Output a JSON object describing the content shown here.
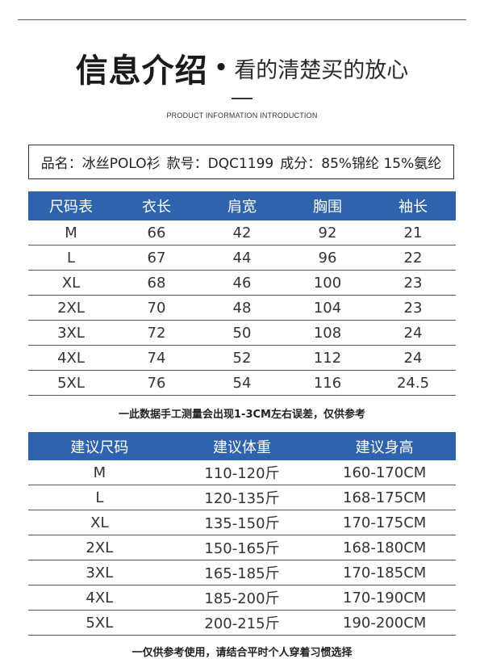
{
  "header": {
    "title_main": "信息介绍",
    "title_dot": "•",
    "title_sub": "看的清楚买的放心",
    "subtitle_en": "PRODUCT INFORMATION INTRODUCTION"
  },
  "info": {
    "product": "品名：冰丝POLO衫",
    "code": "款号：DQC1199",
    "material": "成分：85%锦纶 15%氨纶"
  },
  "size_table": {
    "headers": [
      "尺码表",
      "衣长",
      "肩宽",
      "胸围",
      "袖长"
    ],
    "rows": [
      [
        "M",
        "66",
        "42",
        "92",
        "21"
      ],
      [
        "L",
        "67",
        "44",
        "96",
        "22"
      ],
      [
        "XL",
        "68",
        "46",
        "100",
        "23"
      ],
      [
        "2XL",
        "70",
        "48",
        "104",
        "23"
      ],
      [
        "3XL",
        "72",
        "50",
        "108",
        "24"
      ],
      [
        "4XL",
        "74",
        "52",
        "112",
        "24"
      ],
      [
        "5XL",
        "76",
        "54",
        "116",
        "24.5"
      ]
    ]
  },
  "note1": "一此数据手工测量会出现1-3CM左右误差，仅供参考",
  "rec_table": {
    "headers": [
      "建议尺码",
      "建议体重",
      "建议身高"
    ],
    "rows": [
      [
        "M",
        "110-120斤",
        "160-170CM"
      ],
      [
        "L",
        "120-135斤",
        "168-175CM"
      ],
      [
        "XL",
        "135-150斤",
        "170-175CM"
      ],
      [
        "2XL",
        "150-165斤",
        "168-180CM"
      ],
      [
        "3XL",
        "165-185斤",
        "170-185CM"
      ],
      [
        "4XL",
        "185-200斤",
        "170-190CM"
      ],
      [
        "5XL",
        "200-215斤",
        "190-200CM"
      ]
    ]
  },
  "note2": "一仅供参考使用，请结合平时个人穿着习惯选择",
  "colors": {
    "header_bg": "#2f63ad",
    "header_text": "#ffffff"
  }
}
